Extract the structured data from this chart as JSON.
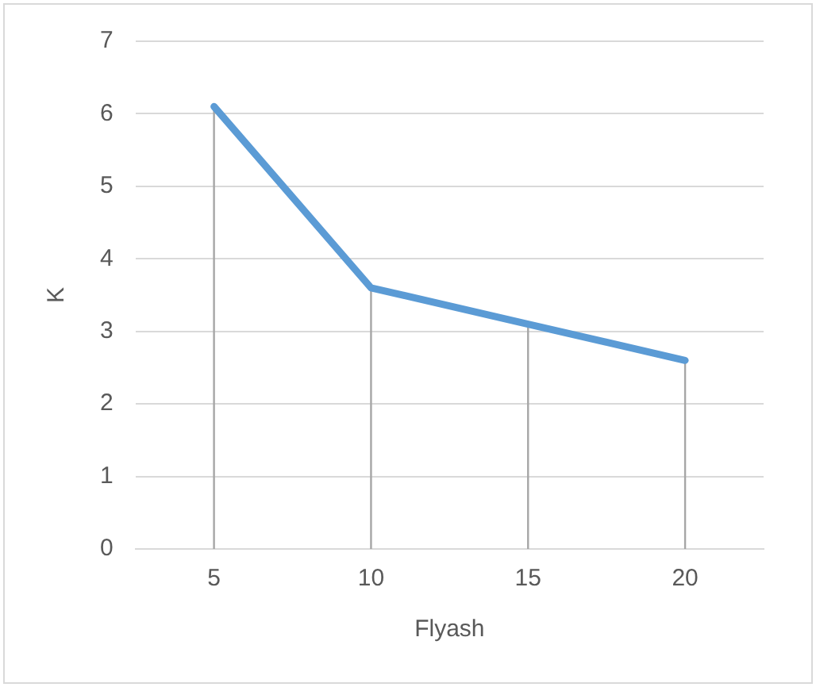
{
  "chart_data": {
    "type": "line",
    "xlabel": "Flyash",
    "ylabel": "K",
    "categories": [
      "5",
      "10",
      "15",
      "20"
    ],
    "series": [
      {
        "color": "#5b9bd5",
        "values": [
          6.1,
          3.6,
          3.1,
          2.6
        ],
        "errors": [
          [
            0,
            6.1
          ],
          [
            0,
            3.6
          ],
          [
            0,
            3.1
          ],
          [
            0,
            2.6
          ]
        ]
      }
    ],
    "ylim": [
      0,
      7
    ],
    "yticks": [
      0,
      1,
      2,
      3,
      4,
      5,
      6,
      7
    ],
    "grid": "y",
    "legend": false,
    "marker": "none"
  }
}
